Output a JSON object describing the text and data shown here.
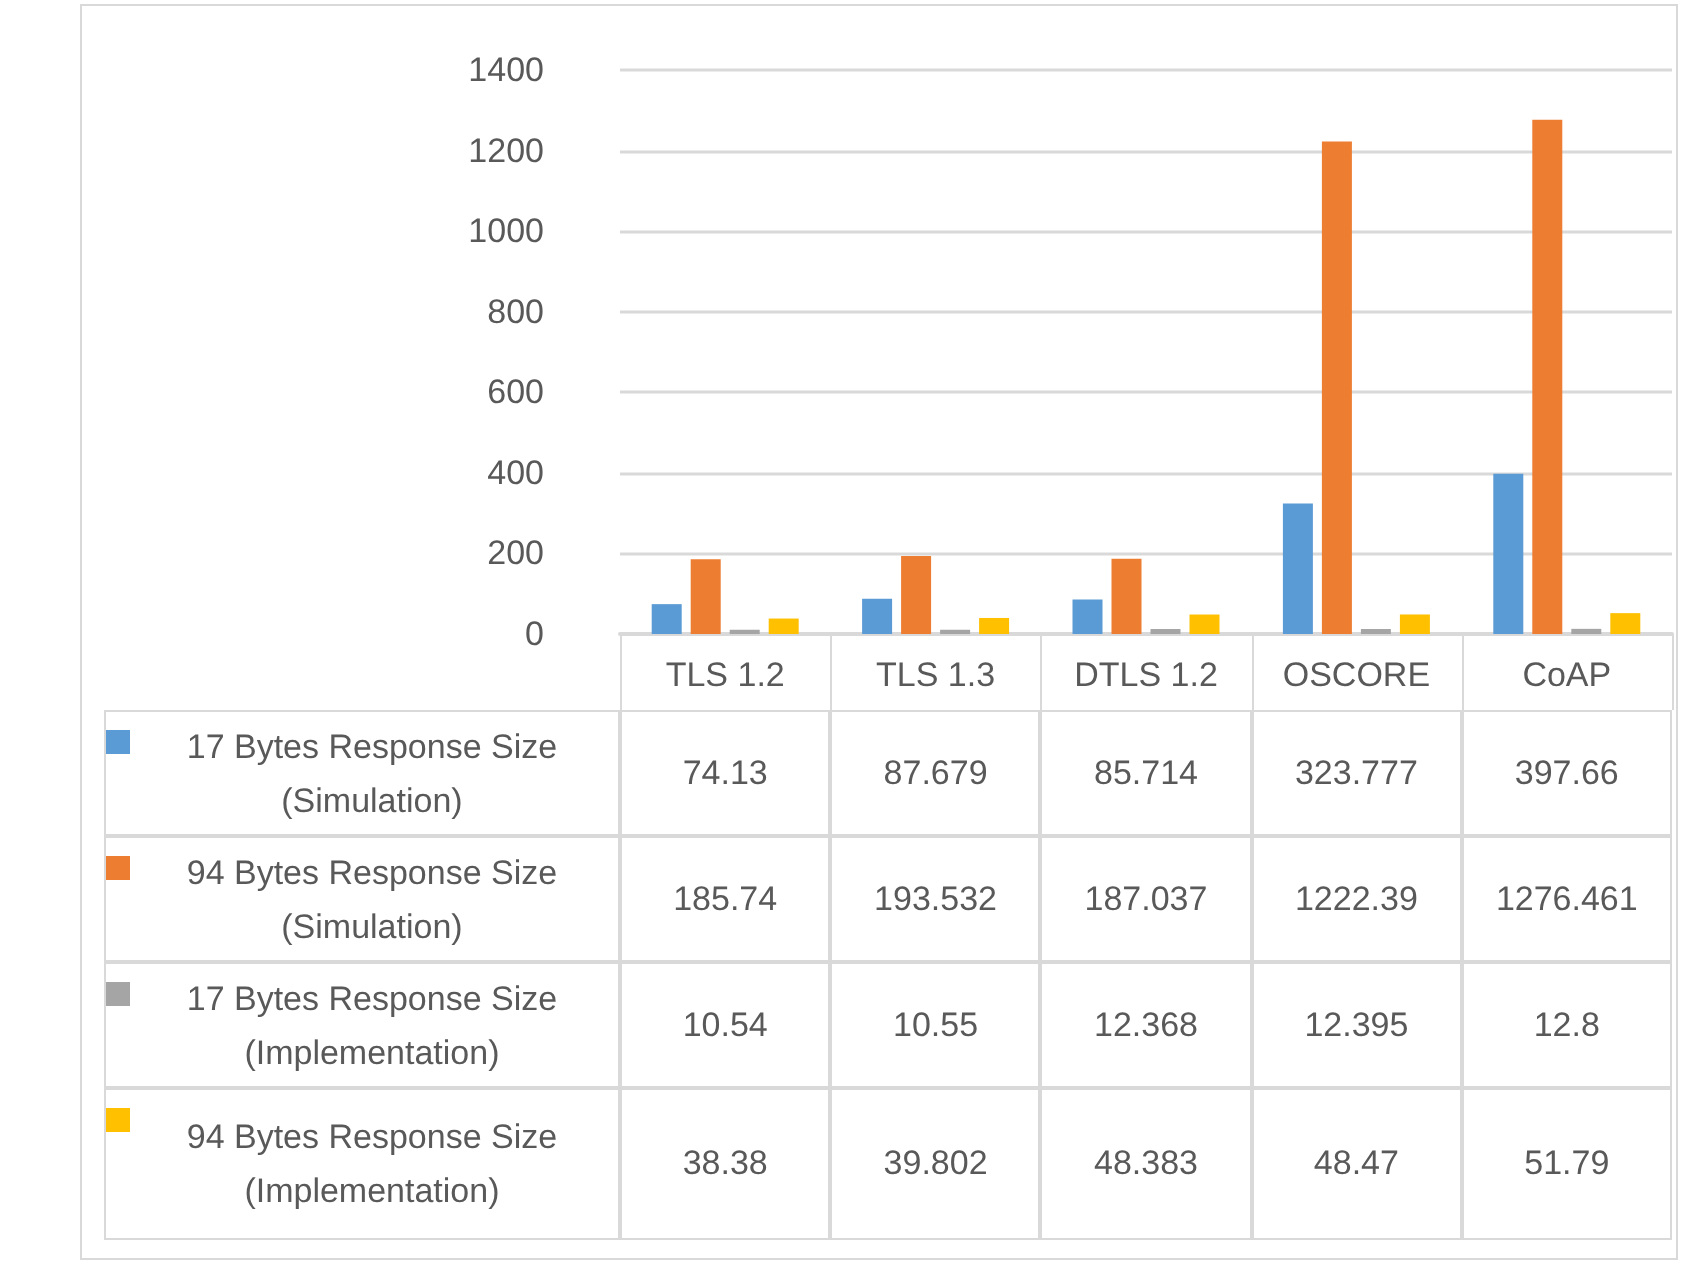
{
  "chart_data": {
    "type": "bar",
    "categories": [
      "TLS 1.2",
      "TLS 1.3",
      "DTLS 1.2",
      "OSCORE",
      "CoAP"
    ],
    "series": [
      {
        "name": "17 Bytes Response Size (Simulation)",
        "color": "#5b9bd5",
        "values": [
          74.13,
          87.679,
          85.714,
          323.777,
          397.66
        ]
      },
      {
        "name": "94 Bytes Response Size (Simulation)",
        "color": "#ed7d31",
        "values": [
          185.74,
          193.532,
          187.037,
          1222.39,
          1276.461
        ]
      },
      {
        "name": "17 Bytes Response Size (Implementation)",
        "color": "#a5a5a5",
        "values": [
          10.54,
          10.55,
          12.368,
          12.395,
          12.8
        ]
      },
      {
        "name": "94 Bytes Response Size (Implementation)",
        "color": "#ffc000",
        "values": [
          38.38,
          39.802,
          48.383,
          48.47,
          51.79
        ]
      }
    ],
    "ylim": [
      0,
      1400
    ],
    "yticks": [
      0,
      200,
      400,
      600,
      800,
      1000,
      1200,
      1400
    ],
    "grid": "y",
    "legend": "bottom left",
    "data_labels": true
  }
}
